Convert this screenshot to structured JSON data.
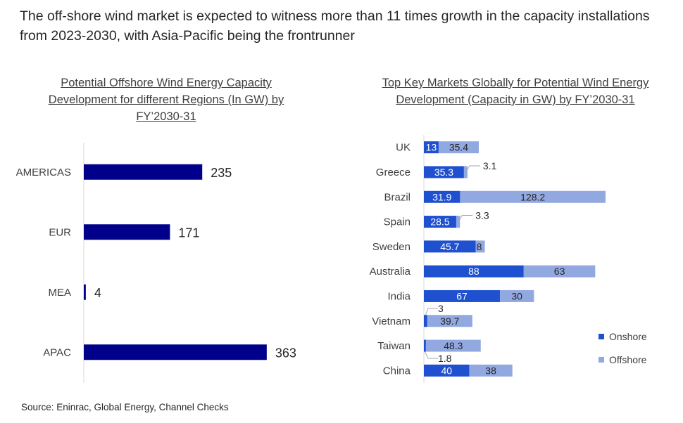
{
  "headline": "The off-shore wind market is expected to witness more than 11 times growth in the capacity installations from 2023-2030, with Asia-Pacific being the frontrunner",
  "source": "Source: Eninrac, Global Energy, Channel Checks",
  "colors": {
    "left_bar": "#00008B",
    "onshore": "#1F50D0",
    "offshore": "#92A8E1",
    "axis": "#D9D9D9"
  },
  "chart_data": [
    {
      "id": "regions",
      "type": "bar",
      "orientation": "horizontal",
      "title": "Potential Offshore Wind Energy Capacity Development for different Regions (In GW) by FY’2030-31",
      "categories": [
        "AMERICAS",
        "EUR",
        "MEA",
        "APAC"
      ],
      "values": [
        235,
        171,
        4,
        363
      ],
      "xlim": [
        0,
        380
      ],
      "grid": false,
      "legend": "none"
    },
    {
      "id": "markets",
      "type": "bar",
      "orientation": "horizontal",
      "stacked": true,
      "title": "Top Key Markets Globally for Potential Wind Energy Development (Capacity in GW) by FY’2030-31",
      "categories": [
        "UK",
        "Greece",
        "Brazil",
        "Spain",
        "Sweden",
        "Australia",
        "India",
        "Vietnam",
        "Taiwan",
        "China"
      ],
      "series": [
        {
          "name": "Onshore",
          "values": [
            13,
            35.3,
            31.9,
            28.5,
            45.7,
            88,
            67,
            3,
            1.8,
            40
          ]
        },
        {
          "name": "Offshore",
          "values": [
            35.4,
            3.1,
            128.2,
            3.3,
            8,
            63,
            30,
            39.7,
            48.3,
            38
          ]
        }
      ],
      "xlim": [
        0,
        165
      ],
      "grid": false,
      "legend": "right"
    }
  ]
}
